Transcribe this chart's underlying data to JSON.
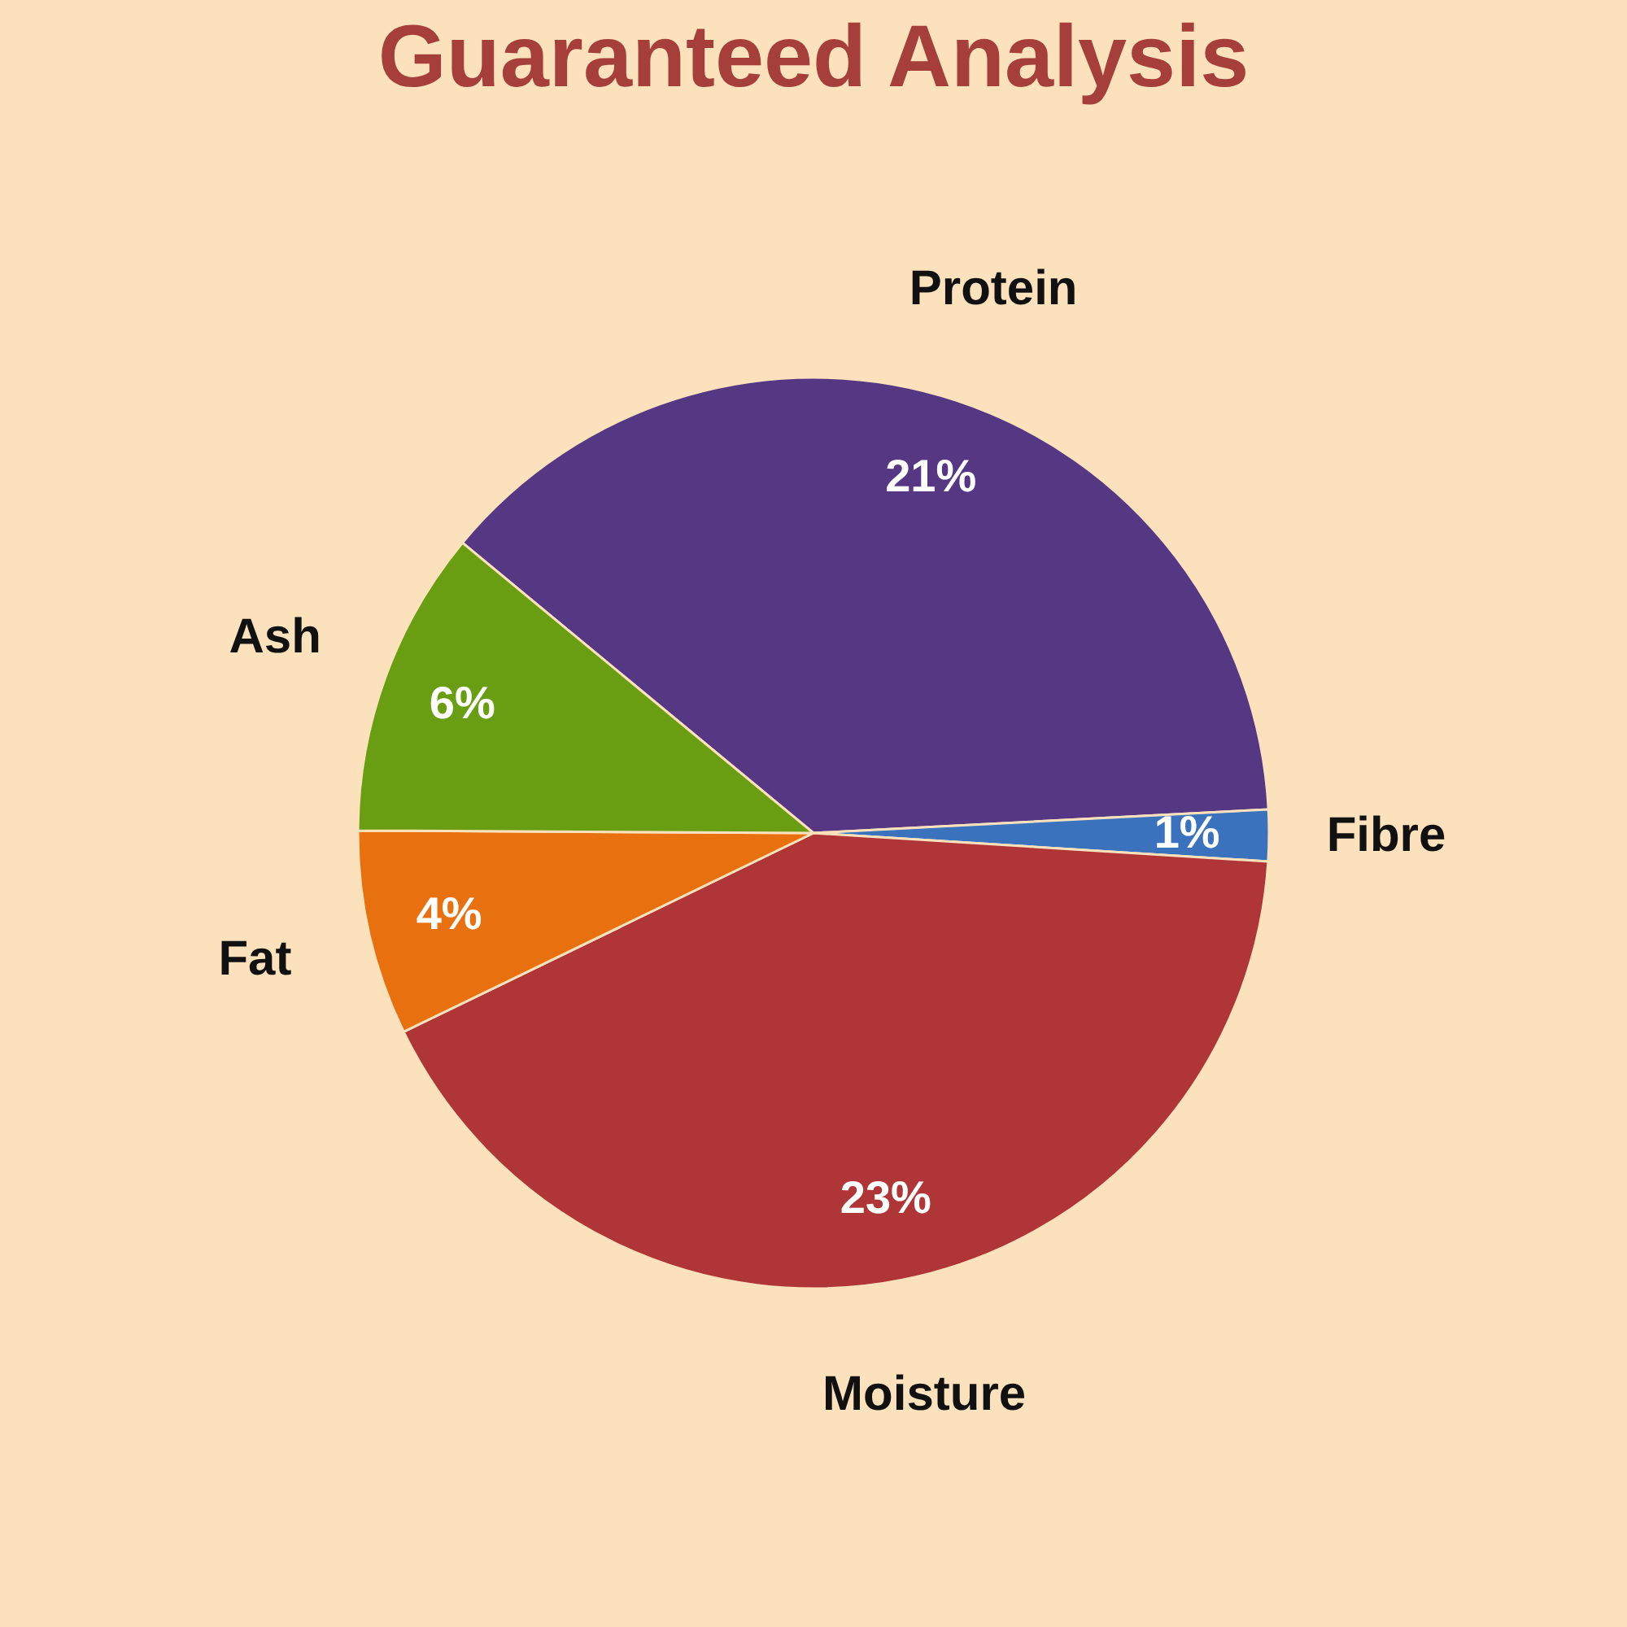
{
  "chart_data": {
    "type": "pie",
    "title": "Guaranteed Analysis",
    "categories": [
      "Protein",
      "Fibre",
      "Moisture",
      "Fat",
      "Ash"
    ],
    "values": [
      21,
      1,
      23,
      4,
      6
    ],
    "colors": [
      "#553783",
      "#3a72bd",
      "#b03536",
      "#e8700f",
      "#6a9e12"
    ],
    "value_labels": [
      "21%",
      "1%",
      "23%",
      "4%",
      "6%"
    ]
  }
}
